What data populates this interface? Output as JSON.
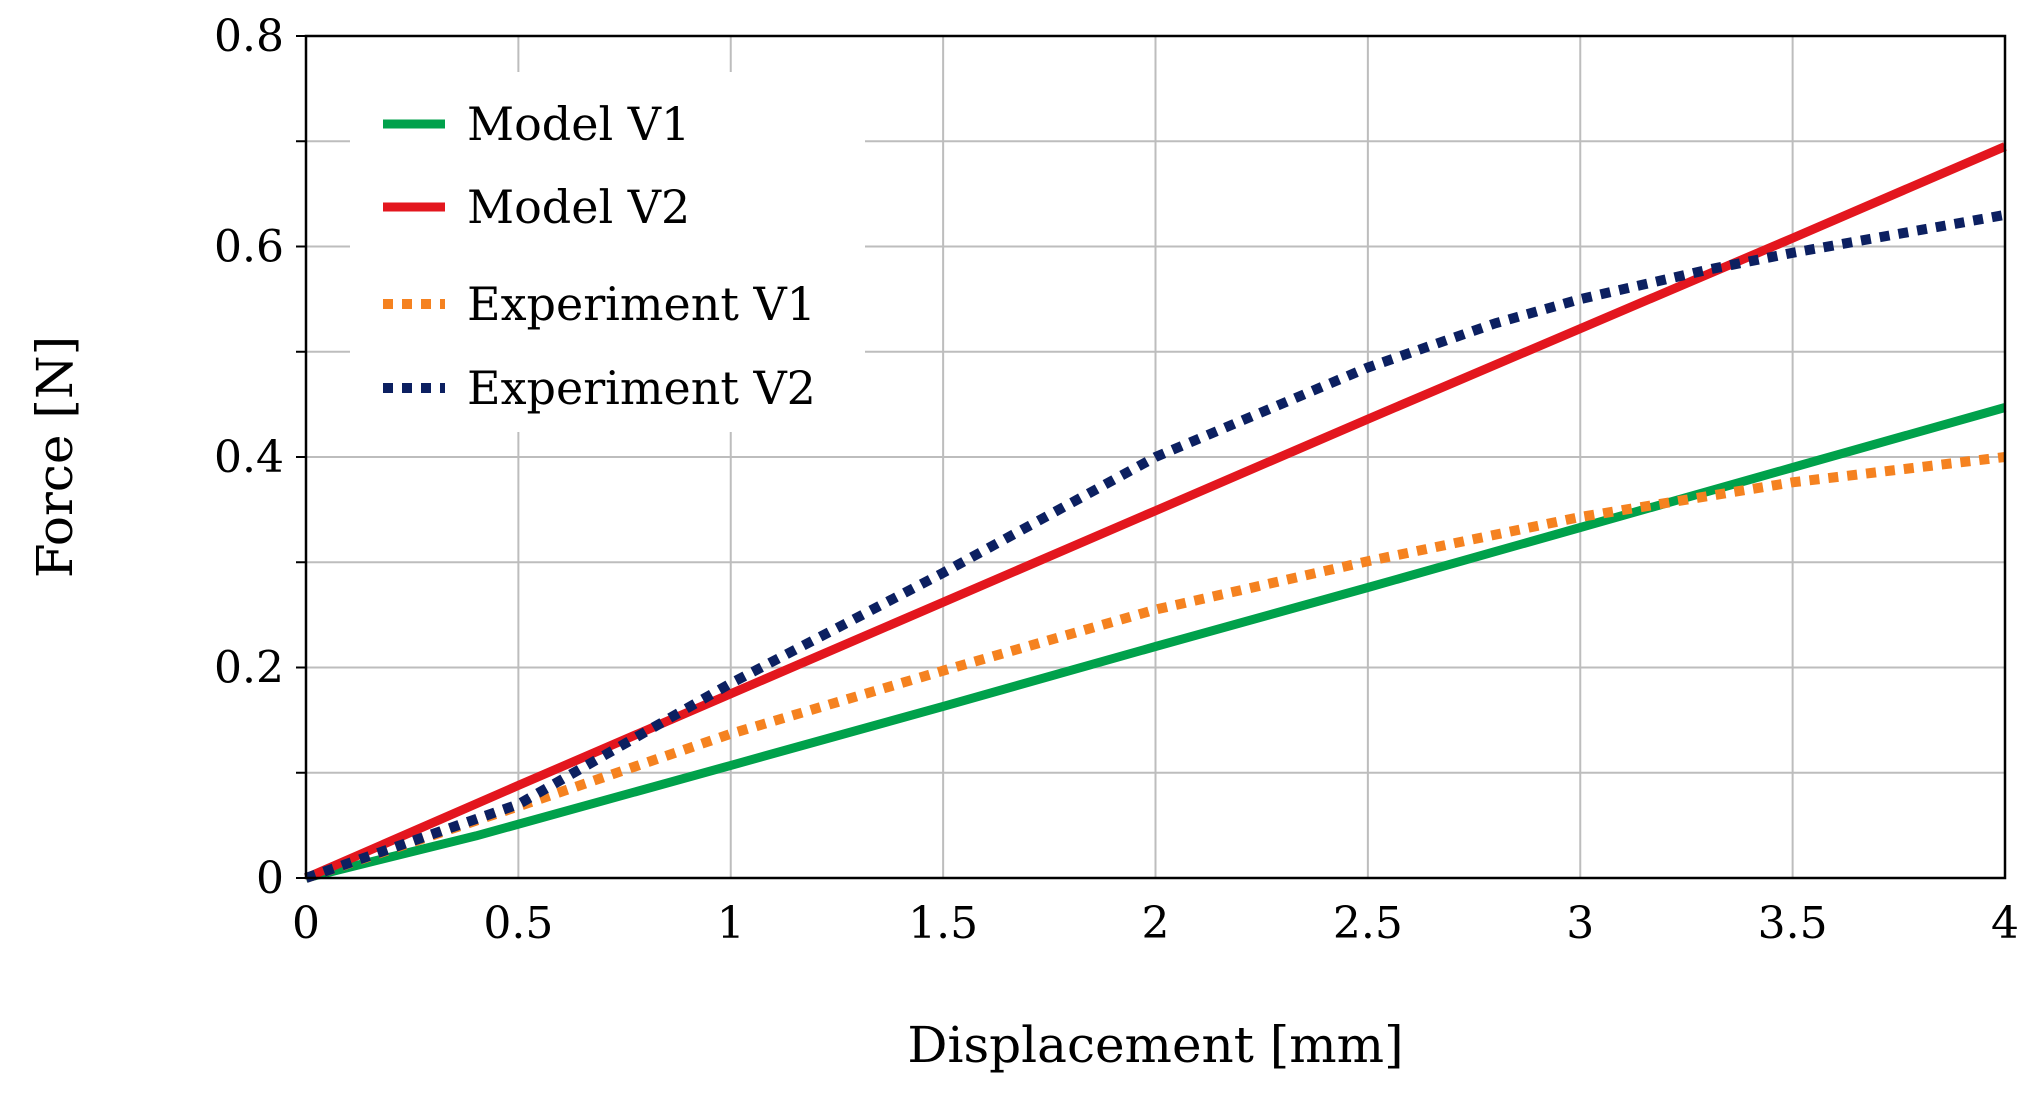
{
  "chart_data": {
    "type": "line",
    "title": "",
    "xlabel": "Displacement [mm]",
    "ylabel": "Force [N]",
    "xlim": [
      0,
      4
    ],
    "ylim": [
      0,
      0.8
    ],
    "xticks": [
      0,
      0.5,
      1,
      1.5,
      2,
      2.5,
      3,
      3.5,
      4
    ],
    "xtick_labels": [
      "0",
      "0.5",
      "1",
      "1.5",
      "2",
      "2.5",
      "3",
      "3.5",
      "4"
    ],
    "yticks": [
      0,
      0.2,
      0.4,
      0.6,
      0.8
    ],
    "ytick_labels": [
      "0",
      "0.2",
      "0.4",
      "0.6",
      "0.8"
    ],
    "grid": true,
    "legend_position": "top-left",
    "series": [
      {
        "name": "Model V1",
        "color": "#00a14b",
        "style": "solid",
        "x": [
          0,
          0.4,
          1,
          1.5,
          2,
          2.5,
          3,
          3.5,
          4
        ],
        "y": [
          0,
          0.04,
          0.107,
          0.163,
          0.22,
          0.276,
          0.333,
          0.39,
          0.447
        ]
      },
      {
        "name": "Model V2",
        "color": "#e3161e",
        "style": "solid",
        "x": [
          0,
          0.5,
          1,
          1.5,
          2,
          2.5,
          3,
          3.5,
          4
        ],
        "y": [
          0,
          0.088,
          0.175,
          0.262,
          0.349,
          0.436,
          0.522,
          0.608,
          0.695
        ]
      },
      {
        "name": "Experiment V1",
        "color": "#f58220",
        "style": "dotted",
        "x": [
          0,
          0.5,
          1,
          1.5,
          2,
          2.5,
          3,
          3.5,
          4
        ],
        "y": [
          0,
          0.068,
          0.137,
          0.197,
          0.255,
          0.301,
          0.343,
          0.376,
          0.4
        ]
      },
      {
        "name": "Experiment V2",
        "color": "#0c2061",
        "style": "dotted",
        "x": [
          0,
          0.5,
          1,
          1.5,
          2,
          2.5,
          2.8,
          3,
          3.3,
          3.5,
          4
        ],
        "y": [
          0,
          0.07,
          0.185,
          0.29,
          0.4,
          0.485,
          0.527,
          0.55,
          0.578,
          0.594,
          0.63
        ]
      }
    ]
  }
}
